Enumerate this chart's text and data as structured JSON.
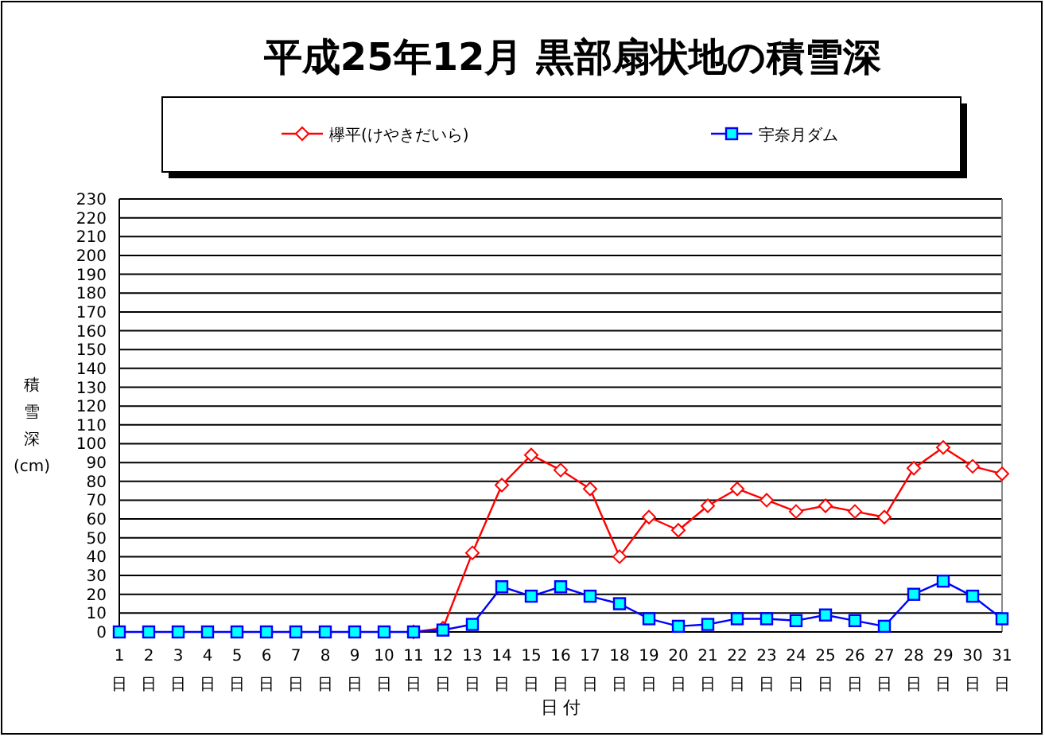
{
  "chart_data": {
    "type": "line",
    "title": "平成25年12月 黒部扇状地の積雪深",
    "xlabel": "日 付",
    "ylabel": "積雪深(cm)",
    "categories": [
      "1日",
      "2日",
      "3日",
      "4日",
      "5日",
      "6日",
      "7日",
      "8日",
      "9日",
      "10日",
      "11日",
      "12日",
      "13日",
      "14日",
      "15日",
      "16日",
      "17日",
      "18日",
      "19日",
      "20日",
      "21日",
      "22日",
      "23日",
      "24日",
      "25日",
      "26日",
      "27日",
      "28日",
      "29日",
      "30日",
      "31日"
    ],
    "series": [
      {
        "name": "欅平(けやきだいら)",
        "color": "#ff0000",
        "marker": "diamond",
        "values": [
          null,
          null,
          null,
          null,
          null,
          null,
          null,
          null,
          null,
          null,
          0,
          2,
          42,
          78,
          94,
          86,
          76,
          40,
          61,
          54,
          67,
          76,
          70,
          64,
          67,
          64,
          61,
          87,
          98,
          88,
          84
        ]
      },
      {
        "name": "宇奈月ダム",
        "color": "#0000ff",
        "marker": "square",
        "values": [
          0,
          0,
          0,
          0,
          0,
          0,
          0,
          0,
          0,
          0,
          0,
          1,
          4,
          24,
          19,
          24,
          19,
          15,
          7,
          3,
          4,
          7,
          7,
          6,
          9,
          6,
          3,
          20,
          27,
          19,
          7
        ]
      }
    ],
    "ylim": [
      0,
      230
    ],
    "yticks": [
      0,
      10,
      20,
      30,
      40,
      50,
      60,
      70,
      80,
      90,
      100,
      110,
      120,
      130,
      140,
      150,
      160,
      170,
      180,
      190,
      200,
      210,
      220,
      230
    ],
    "grid": "y",
    "legend": "top"
  }
}
